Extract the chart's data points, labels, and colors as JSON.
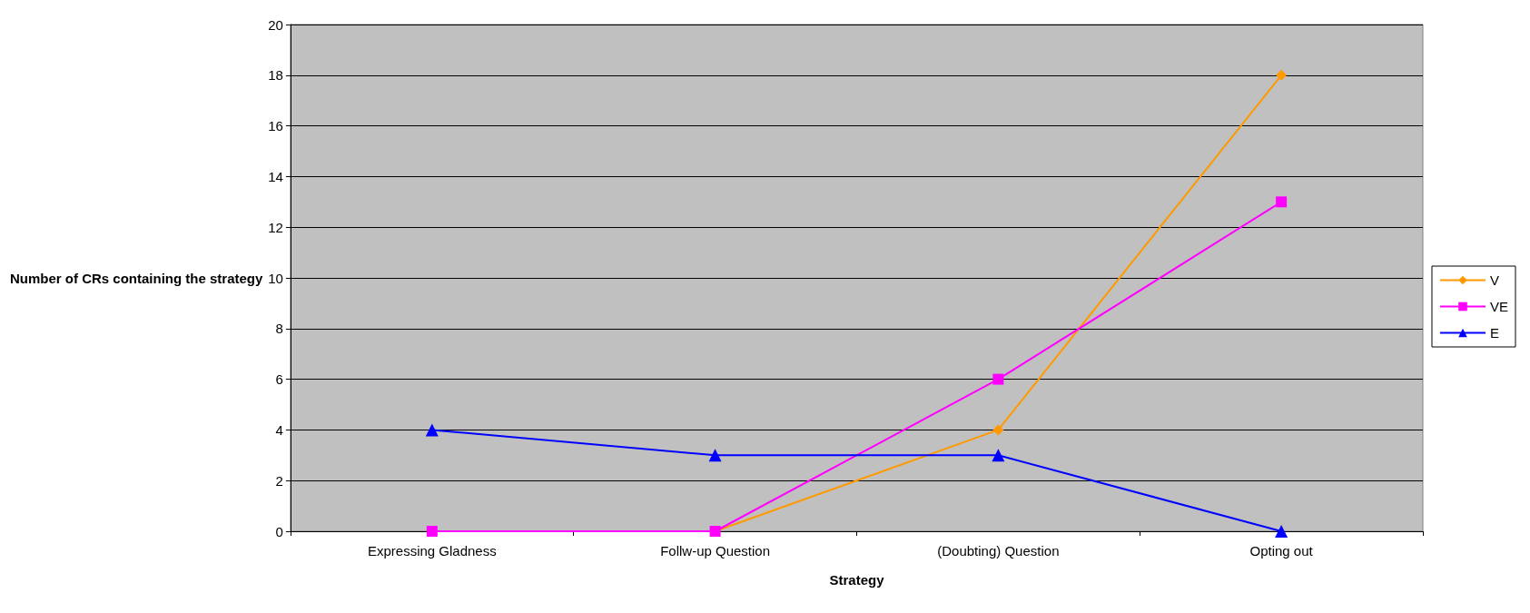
{
  "chart_data": {
    "type": "line",
    "xlabel": "Strategy",
    "ylabel": "Number of CRs containing the strategy",
    "categories": [
      "Expressing Gladness",
      "Follw-up Question",
      "(Doubting) Question",
      "Opting out"
    ],
    "series": [
      {
        "name": "V",
        "color": "#ff9900",
        "marker": "diamond",
        "values": [
          null,
          0,
          4,
          18
        ]
      },
      {
        "name": "VE",
        "color": "#ff00ff",
        "marker": "square",
        "values": [
          0,
          0,
          6,
          13
        ]
      },
      {
        "name": "E",
        "color": "#0000ff",
        "marker": "triangle",
        "values": [
          4,
          3,
          3,
          0
        ]
      }
    ],
    "ylim": [
      0,
      20
    ],
    "yticks": [
      0,
      2,
      4,
      6,
      8,
      10,
      12,
      14,
      16,
      18,
      20
    ],
    "grid": "y",
    "legend": "right"
  }
}
